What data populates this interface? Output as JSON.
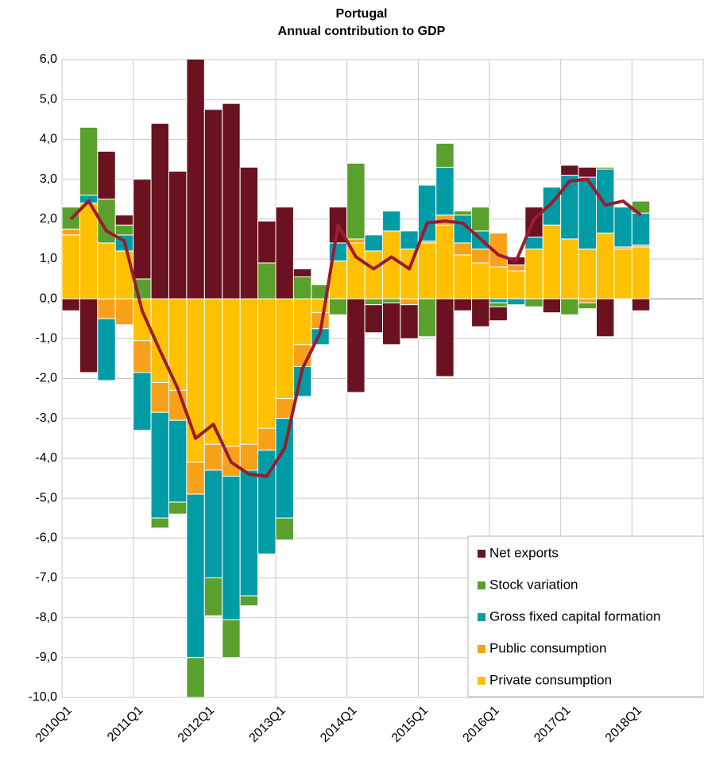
{
  "chart_data": {
    "type": "bar",
    "title": "Portugal",
    "subtitle": "Annual contribution to GDP",
    "stacked": true,
    "categories": [
      "2010Q1",
      null,
      null,
      null,
      "2011Q1",
      null,
      null,
      null,
      "2012Q1",
      null,
      null,
      null,
      "2013Q1",
      null,
      null,
      null,
      "2014Q1",
      null,
      null,
      null,
      "2015Q1",
      null,
      null,
      null,
      "2016Q1",
      null,
      null,
      null,
      "2017Q1",
      null,
      null,
      null,
      "2018Q1",
      null,
      null,
      null
    ],
    "series": [
      {
        "name": "Private consumption",
        "color": "#ffc000",
        "values": [
          1.6,
          2.4,
          1.4,
          1.2,
          -1.05,
          -2.1,
          -2.3,
          -4.1,
          -3.65,
          -3.7,
          -3.65,
          -3.25,
          -2.5,
          -1.15,
          -0.35,
          0.95,
          1.4,
          1.2,
          1.7,
          1.25,
          1.4,
          1.85,
          1.1,
          0.9,
          0.8,
          0.7,
          1.25,
          1.85,
          1.5,
          1.25,
          1.65,
          1.25,
          1.3,
          null,
          null,
          null
        ]
      },
      {
        "name": "Public consumption",
        "color": "#f7a11a",
        "values": [
          0.15,
          0,
          -0.5,
          -0.65,
          -0.8,
          -0.75,
          -0.75,
          -0.8,
          -0.65,
          -0.75,
          -0.65,
          -0.55,
          -0.5,
          -0.55,
          -0.4,
          0,
          0.1,
          0,
          0,
          -0.15,
          0.05,
          0.25,
          0.3,
          0.35,
          0.85,
          0.15,
          0,
          0,
          0,
          -0.1,
          0,
          0.05,
          0.05,
          null,
          null,
          null
        ]
      },
      {
        "name": "Gross fixed capital formation",
        "color": "#009ca6",
        "values": [
          0,
          0.2,
          -1.55,
          0.4,
          -1.45,
          -2.65,
          -2.05,
          -4.1,
          -2.7,
          -3.6,
          -3.15,
          -2.6,
          -2.5,
          -0.75,
          -0.4,
          0.45,
          0,
          0.4,
          0.5,
          0.45,
          1.4,
          1.2,
          0.7,
          0.45,
          -0.1,
          -0.15,
          0.3,
          0.95,
          1.6,
          1.8,
          1.6,
          1.0,
          0.8,
          null,
          null,
          null
        ]
      },
      {
        "name": "Stock variation",
        "color": "#5aa02c",
        "values": [
          0.55,
          1.7,
          1.1,
          0.25,
          0.5,
          -0.25,
          -0.3,
          -1.0,
          -0.95,
          -0.95,
          -0.25,
          0.9,
          -0.55,
          0.55,
          0.35,
          -0.4,
          1.9,
          -0.15,
          -0.1,
          0,
          -0.95,
          0.6,
          0.1,
          0.6,
          -0.1,
          0,
          -0.2,
          0,
          -0.4,
          -0.15,
          0.05,
          0,
          0.3,
          null,
          null,
          null
        ]
      },
      {
        "name": "Net exports",
        "color": "#6b1220",
        "values": [
          -0.3,
          -1.85,
          1.2,
          0.25,
          2.5,
          4.4,
          3.2,
          6.1,
          4.75,
          4.9,
          3.3,
          1.05,
          2.3,
          0.2,
          0,
          0.9,
          -2.35,
          -0.7,
          -1.05,
          -0.85,
          0,
          -1.95,
          -0.3,
          -0.7,
          -0.35,
          0.2,
          0.75,
          -0.35,
          0.25,
          0.25,
          -0.95,
          0,
          -0.3,
          null,
          null,
          null
        ]
      }
    ],
    "line": {
      "type": "line",
      "color": "#9b1b30",
      "values": [
        2.0,
        2.45,
        1.7,
        1.45,
        -0.3,
        -1.3,
        -2.25,
        -3.5,
        -3.15,
        -4.1,
        -4.4,
        -4.45,
        -3.75,
        -1.75,
        -0.85,
        1.85,
        1.05,
        0.75,
        1.05,
        0.75,
        1.9,
        1.95,
        1.9,
        1.5,
        1.1,
        0.95,
        2.0,
        2.4,
        2.95,
        3.0,
        2.35,
        2.45,
        2.1,
        null,
        null,
        null
      ]
    },
    "ylim": [
      -10,
      6
    ],
    "yticks": [
      {
        "value": 6,
        "label": "6,0"
      },
      {
        "value": 5,
        "label": "5,0"
      },
      {
        "value": 4,
        "label": "4,0"
      },
      {
        "value": 3,
        "label": "3,0"
      },
      {
        "value": 2,
        "label": "2,0"
      },
      {
        "value": 1,
        "label": "1,0"
      },
      {
        "value": 0,
        "label": "0,0"
      },
      {
        "value": -1,
        "label": "-1,0"
      },
      {
        "value": -2,
        "label": "-2,0"
      },
      {
        "value": -3,
        "label": "-3,0"
      },
      {
        "value": -4,
        "label": "-4,0"
      },
      {
        "value": -5,
        "label": "-5,0"
      },
      {
        "value": -6,
        "label": "-6,0"
      },
      {
        "value": -7,
        "label": "-7,0"
      },
      {
        "value": -8,
        "label": "-8,0"
      },
      {
        "value": -9,
        "label": "-9,0"
      },
      {
        "value": -10,
        "label": "-10,0"
      }
    ],
    "grid": true,
    "legend": "bottom-right"
  }
}
